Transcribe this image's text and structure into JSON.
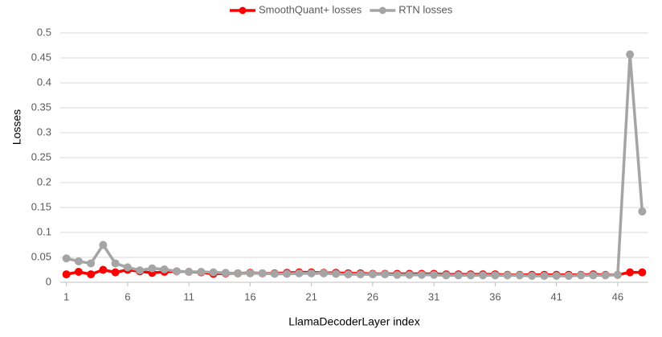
{
  "chart_data": {
    "type": "line",
    "x_label": "LlamaDecoderLayer index",
    "y_label": "Losses",
    "x": [
      1,
      2,
      3,
      4,
      5,
      6,
      7,
      8,
      9,
      10,
      11,
      12,
      13,
      14,
      15,
      16,
      17,
      18,
      19,
      20,
      21,
      22,
      23,
      24,
      25,
      26,
      27,
      28,
      29,
      30,
      31,
      32,
      33,
      34,
      35,
      36,
      37,
      38,
      39,
      40,
      41,
      42,
      43,
      44,
      45,
      46,
      47,
      48
    ],
    "series": [
      {
        "name": "SmoothQuant+ losses",
        "color": "#ff0000",
        "values": [
          0.016,
          0.021,
          0.016,
          0.025,
          0.02,
          0.025,
          0.022,
          0.019,
          0.021,
          0.022,
          0.021,
          0.02,
          0.017,
          0.018,
          0.018,
          0.019,
          0.018,
          0.018,
          0.019,
          0.02,
          0.02,
          0.019,
          0.019,
          0.018,
          0.018,
          0.017,
          0.017,
          0.017,
          0.017,
          0.017,
          0.017,
          0.016,
          0.016,
          0.016,
          0.016,
          0.016,
          0.015,
          0.015,
          0.015,
          0.015,
          0.015,
          0.015,
          0.015,
          0.016,
          0.015,
          0.015,
          0.02,
          0.02
        ]
      },
      {
        "name": "RTN losses",
        "color": "#a5a5a5",
        "values": [
          0.048,
          0.042,
          0.038,
          0.075,
          0.038,
          0.03,
          0.024,
          0.028,
          0.026,
          0.022,
          0.021,
          0.021,
          0.02,
          0.019,
          0.018,
          0.018,
          0.018,
          0.017,
          0.017,
          0.018,
          0.018,
          0.018,
          0.017,
          0.016,
          0.016,
          0.016,
          0.016,
          0.015,
          0.015,
          0.015,
          0.015,
          0.014,
          0.014,
          0.014,
          0.014,
          0.014,
          0.014,
          0.014,
          0.013,
          0.013,
          0.013,
          0.013,
          0.014,
          0.014,
          0.014,
          0.015,
          0.457,
          0.142
        ]
      }
    ],
    "xlim": [
      0.5,
      48.5
    ],
    "xticks": [
      1,
      6,
      11,
      16,
      21,
      26,
      31,
      36,
      41,
      46
    ],
    "ylim": [
      0,
      0.5
    ],
    "yticks": [
      0,
      0.05,
      0.1,
      0.15,
      0.2,
      0.25,
      0.3,
      0.35,
      0.4,
      0.45,
      0.5
    ],
    "grid": true,
    "legend": "top"
  }
}
